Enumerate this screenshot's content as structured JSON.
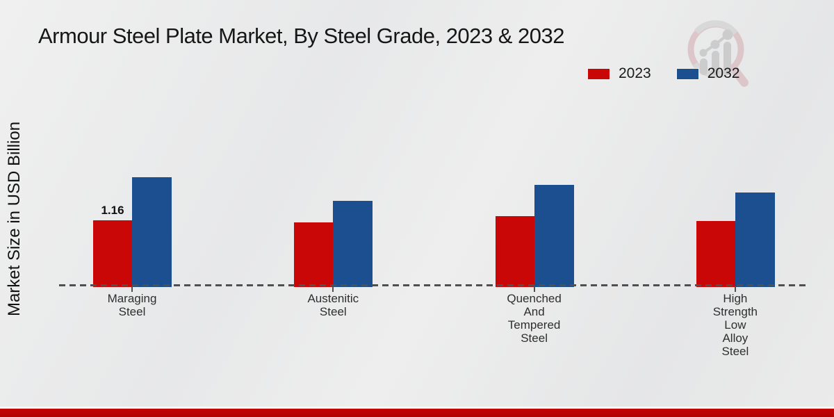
{
  "title": "Armour Steel Plate Market, By Steel Grade, 2023 & 2032",
  "logo_icon": "magnifier-growth-chart",
  "legend": {
    "items": [
      {
        "label": "2023",
        "color": "#c90707"
      },
      {
        "label": "2032",
        "color": "#1b4f8f"
      }
    ]
  },
  "footer": {
    "band_color": "#b80202"
  },
  "chart_data": {
    "type": "bar",
    "title": "Armour Steel Plate Market, By Steel Grade, 2023 & 2032",
    "xlabel": "",
    "ylabel": "Market Size in USD Billion",
    "categories": [
      "Maraging Steel",
      "Austenitic Steel",
      "Quenched And Tempered Steel",
      "High Strength Low Alloy Steel"
    ],
    "series": [
      {
        "name": "2023",
        "color": "#c90707",
        "values": [
          1.16,
          1.12,
          1.23,
          1.15
        ]
      },
      {
        "name": "2032",
        "color": "#1b4f8f",
        "values": [
          1.93,
          1.5,
          1.79,
          1.66
        ]
      }
    ],
    "annotations": [
      {
        "series": "2023",
        "category_index": 0,
        "text": "1.16"
      }
    ],
    "ylim": [
      0,
      2.2
    ],
    "grid": false,
    "baseline_style": "dashed",
    "legend_position": "top-right"
  }
}
